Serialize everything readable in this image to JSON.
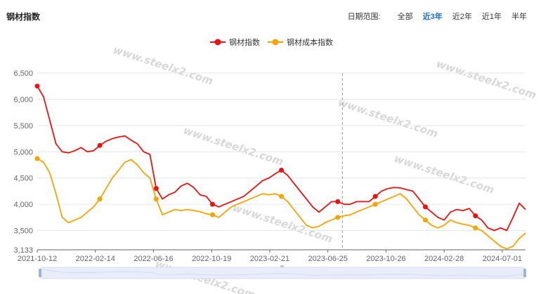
{
  "header": {
    "title": "钢材指数",
    "range_label": "日期范围:",
    "range_options": [
      "全部",
      "近3年",
      "近2年",
      "近1年",
      "半年"
    ],
    "active_range": "近3年"
  },
  "watermark": "www.steelx2.com",
  "chart_data": {
    "type": "line",
    "title": "",
    "ylim": [
      3133,
      6500
    ],
    "yticks": [
      3133,
      3500,
      4000,
      4500,
      5000,
      5500,
      6000,
      6500
    ],
    "ytick_labels": [
      "3,133",
      "3,500",
      "4,000",
      "4,500",
      "5,000",
      "5,500",
      "6,000",
      "6,500"
    ],
    "x_ticks": [
      "2021-10-12",
      "2022-02-14",
      "2022-06-16",
      "2022-10-19",
      "2023-02-21",
      "2023-06-25",
      "2023-10-26",
      "2024-02-28",
      "2024-07-01"
    ],
    "grid": true,
    "legend_position": "top-center",
    "series": [
      {
        "name": "钢材指数",
        "color": "#ee1111",
        "values": [
          6250,
          6050,
          5600,
          5150,
          5000,
          4980,
          5020,
          5080,
          5000,
          5020,
          5120,
          5200,
          5250,
          5280,
          5300,
          5220,
          5150,
          5000,
          4950,
          4300,
          4100,
          4180,
          4230,
          4350,
          4400,
          4320,
          4180,
          4150,
          4000,
          3950,
          4000,
          4050,
          4100,
          4150,
          4250,
          4350,
          4450,
          4500,
          4580,
          4650,
          4550,
          4400,
          4250,
          4100,
          3950,
          3850,
          3950,
          4050,
          4050,
          4000,
          4000,
          4050,
          4050,
          4050,
          4150,
          4250,
          4300,
          4320,
          4310,
          4280,
          4250,
          4100,
          3950,
          3850,
          3750,
          3700,
          3850,
          3900,
          3880,
          3920,
          3780,
          3700,
          3550,
          3500,
          3550,
          3500,
          3750,
          4020,
          3900
        ],
        "markers": [
          0,
          10,
          19,
          28,
          39,
          48,
          54,
          62,
          70
        ]
      },
      {
        "name": "钢材成本指数",
        "color": "#f5a400",
        "values": [
          4870,
          4800,
          4600,
          4200,
          3750,
          3650,
          3700,
          3750,
          3850,
          3950,
          4100,
          4300,
          4500,
          4650,
          4800,
          4850,
          4750,
          4600,
          4500,
          4100,
          3800,
          3850,
          3900,
          3880,
          3900,
          3880,
          3860,
          3820,
          3800,
          3750,
          3850,
          3950,
          4000,
          4050,
          4100,
          4150,
          4200,
          4180,
          4200,
          4150,
          4050,
          3900,
          3750,
          3600,
          3550,
          3580,
          3650,
          3700,
          3750,
          3780,
          3800,
          3850,
          3900,
          3950,
          4000,
          4050,
          4100,
          4150,
          4200,
          4100,
          3950,
          3800,
          3700,
          3600,
          3550,
          3600,
          3700,
          3650,
          3620,
          3600,
          3550,
          3500,
          3400,
          3300,
          3200,
          3150,
          3200,
          3350,
          3450
        ],
        "markers": [
          0,
          10,
          19,
          28,
          39,
          48,
          54,
          62,
          70
        ]
      }
    ]
  }
}
